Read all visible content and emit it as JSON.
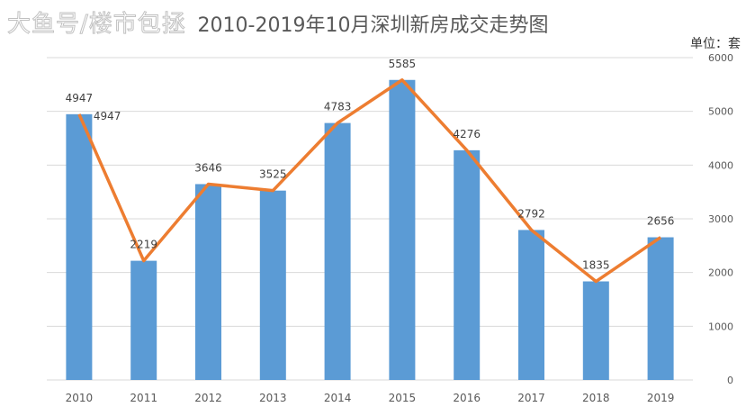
{
  "chart_data": {
    "type": "bar+line",
    "title": "2010-2019年10月深圳新房成交走势图",
    "unit_label": "单位：套",
    "categories": [
      "2010",
      "2011",
      "2012",
      "2013",
      "2014",
      "2015",
      "2016",
      "2017",
      "2018",
      "2019"
    ],
    "series": [
      {
        "type": "bar",
        "values": [
          4947,
          2219,
          3646,
          3525,
          4783,
          5585,
          4276,
          2792,
          1835,
          2656
        ],
        "color": "#5b9bd5"
      },
      {
        "type": "line",
        "values": [
          4947,
          2219,
          3646,
          3525,
          4783,
          5585,
          4276,
          2792,
          1835,
          2656
        ],
        "color": "#ed7d31"
      }
    ],
    "data_labels": [
      "4947",
      "2219",
      "3646",
      "3525",
      "4783",
      "5585",
      "4276",
      "2792",
      "1835",
      "2656"
    ],
    "extra_label": "4947",
    "y_axis": {
      "position": "right",
      "ylim": [
        0,
        6000
      ],
      "ticks": [
        "0",
        "1000",
        "2000",
        "3000",
        "4000",
        "5000",
        "6000"
      ]
    },
    "grid": true,
    "legend": "none"
  },
  "watermark": "大鱼号/楼市包拯"
}
